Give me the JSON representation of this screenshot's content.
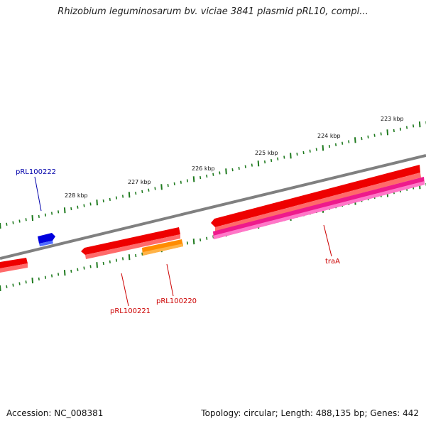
{
  "title": "Rhizobium leguminosarum bv. viciae 3841 plasmid pRL10, compl...",
  "footer": {
    "accession": "Accession: NC_008381",
    "stats": "Topology: circular; Length: 488,135 bp; Genes: 442"
  },
  "colors": {
    "backbone": "#808080",
    "forward_gene": "#ee0000",
    "reverse_gene": "#ee0000",
    "orange_gene": "#ff8c00",
    "pink_gene": "#ee1a8c",
    "blue_gene": "#0000dd",
    "ticks": "#1e7a1e",
    "label_red": "#cc0000",
    "label_blue": "#0000aa"
  },
  "ruler": {
    "labels": [
      "223 kbp",
      "224 kbp",
      "225 kbp",
      "226 kbp",
      "227 kbp",
      "228 kbp"
    ]
  },
  "genes": [
    {
      "label": "traA",
      "color_key": "pink_gene"
    },
    {
      "label": "pRL100220",
      "color_key": "orange_gene"
    },
    {
      "label": "pRL100221",
      "color_key": "forward_gene"
    },
    {
      "label": "pRL100222",
      "color_key": "blue_gene"
    }
  ]
}
